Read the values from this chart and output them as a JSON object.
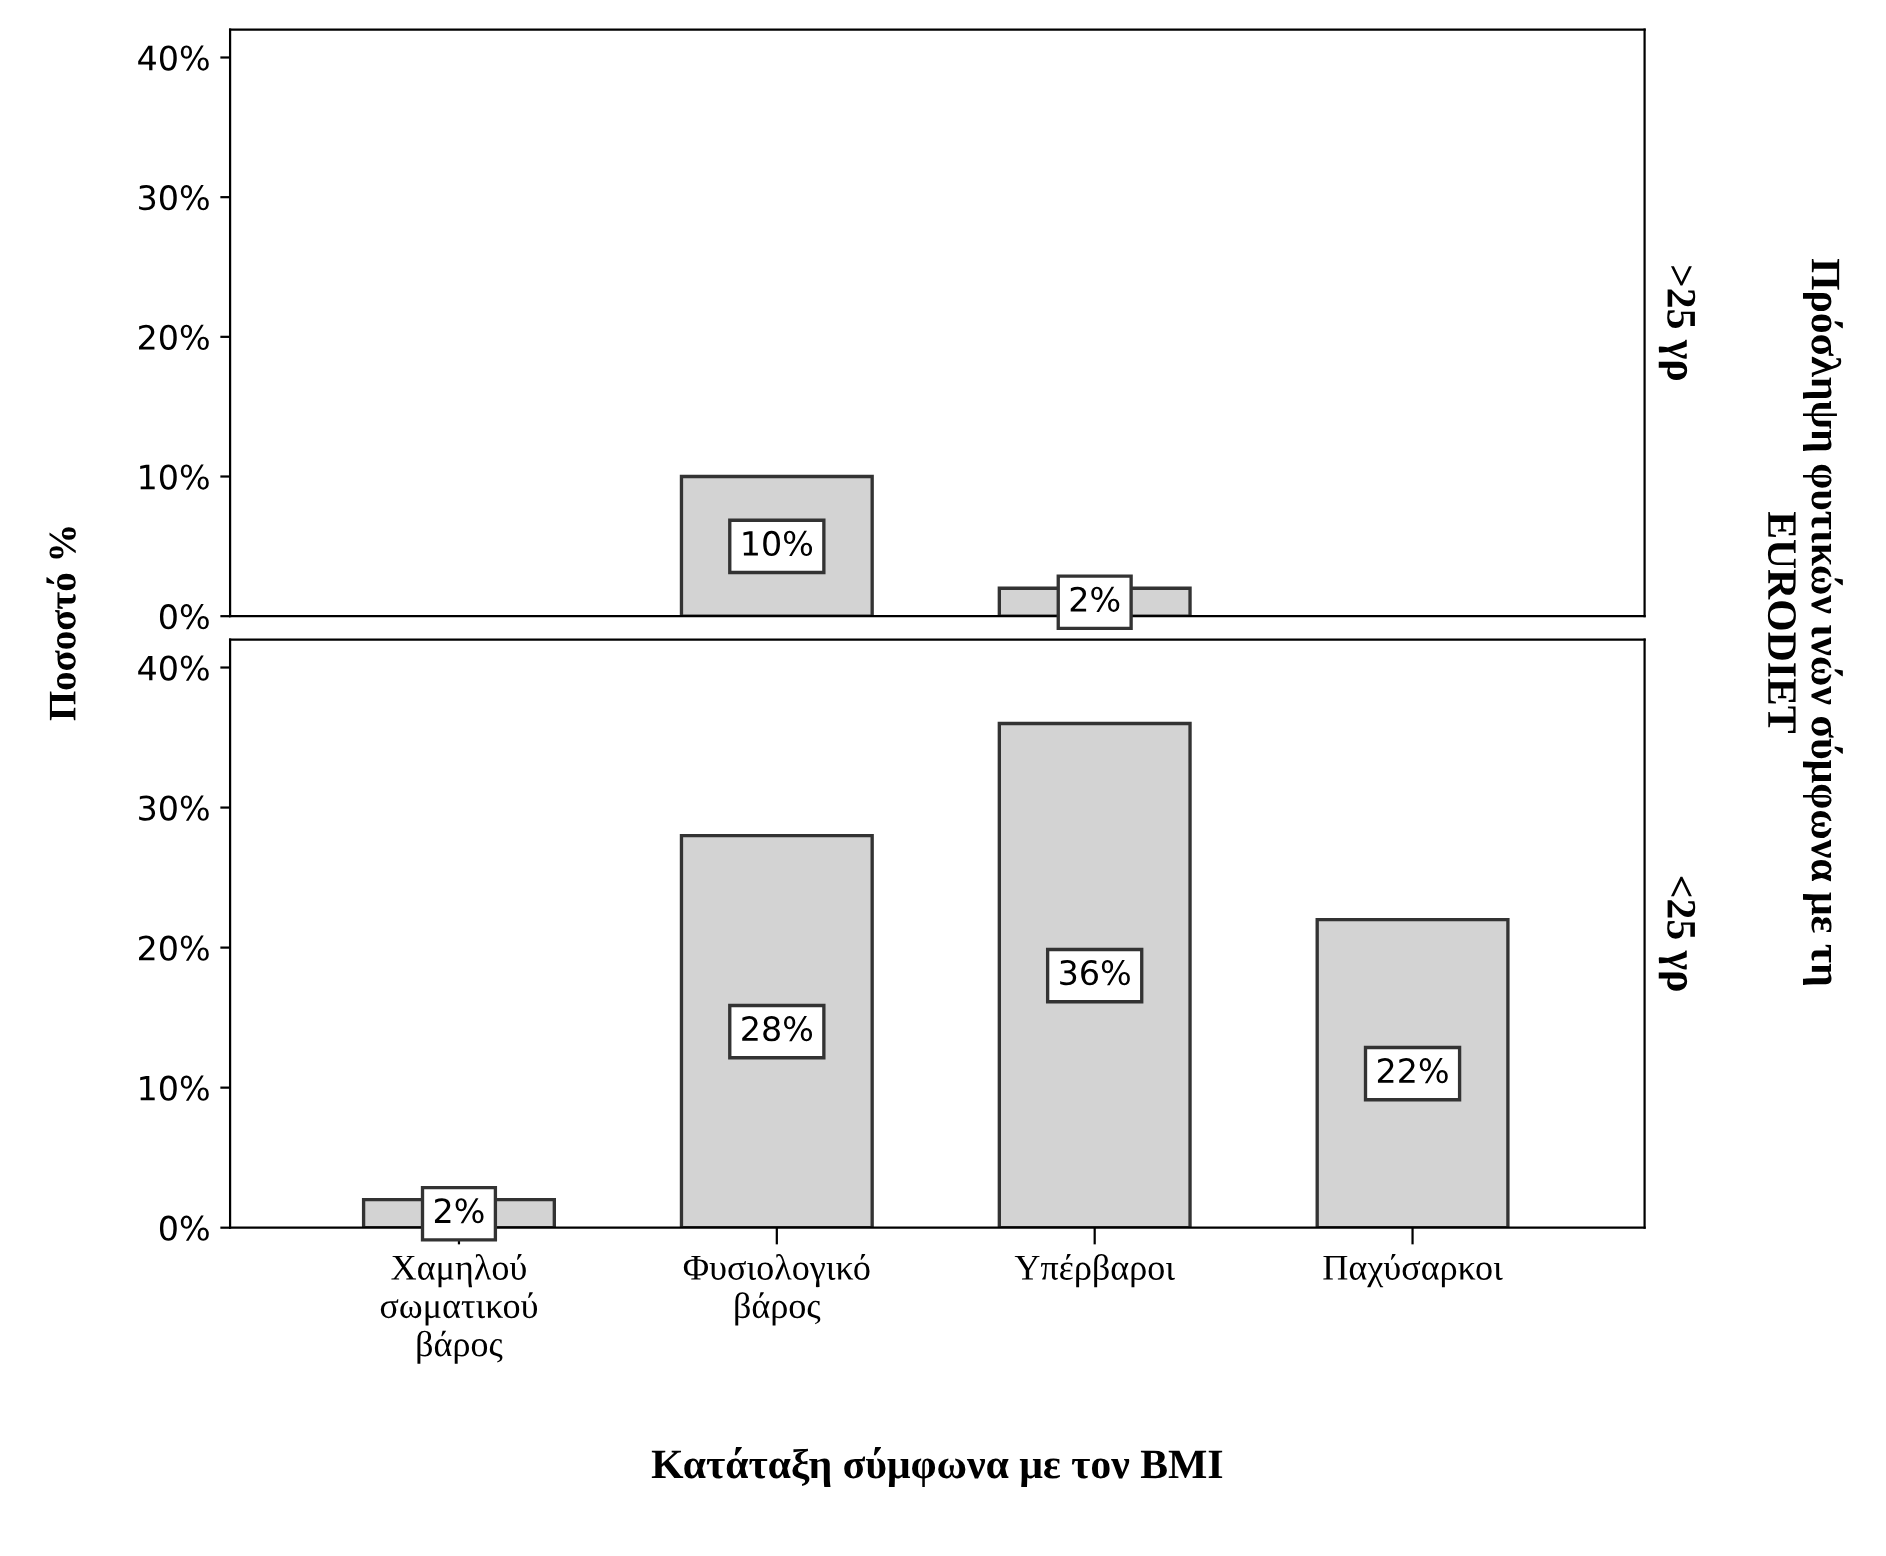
{
  "chart_data": [
    {
      "type": "bar",
      "title": ">25 γρ",
      "ylabel": "Ποσοστό %",
      "annotations": [
        "Πρόσληψη φυτικών ινών σύμφωνα με τη\nEURODIET"
      ],
      "categories": [
        null,
        null,
        null,
        null
      ],
      "series": [
        {
          "color": "#d3d3d3",
          "values": [
            null,
            10,
            2,
            null
          ],
          "value_labels": [
            null,
            "10%",
            "2%",
            null
          ]
        }
      ],
      "ylim": [
        0,
        42
      ],
      "yticks": [
        {
          "value": 0,
          "label": "0%"
        },
        {
          "value": 10,
          "label": "10%"
        },
        {
          "value": 20,
          "label": "20%"
        },
        {
          "value": 30,
          "label": "30%"
        },
        {
          "value": 40,
          "label": "40%"
        }
      ],
      "tick_labels": "y",
      "grid": false,
      "legend": false
    },
    {
      "type": "bar",
      "title": "<25 γρ",
      "xlabel": "Κατάταξη σύμφωνα με τον BMI",
      "categories": [
        "Χαμηλού\nσωματικού\nβάρος",
        "Φυσιολογικό\nβάρος",
        "Υπέρβαροι",
        "Παχύσαρκοι"
      ],
      "series": [
        {
          "color": "#d3d3d3",
          "values": [
            2,
            28,
            36,
            22
          ],
          "value_labels": [
            "2%",
            "28%",
            "36%",
            "22%"
          ]
        }
      ],
      "ylim": [
        0,
        42
      ],
      "yticks": [
        {
          "value": 0,
          "label": "0%"
        },
        {
          "value": 10,
          "label": "10%"
        },
        {
          "value": 20,
          "label": "20%"
        },
        {
          "value": 30,
          "label": "30%"
        },
        {
          "value": 40,
          "label": "40%"
        }
      ],
      "grid": false,
      "legend": false
    }
  ]
}
